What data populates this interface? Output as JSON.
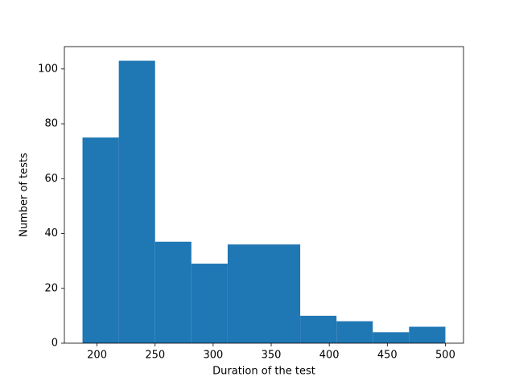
{
  "chart_data": {
    "type": "histogram",
    "xlabel": "Duration of the test",
    "ylabel": "Number of tests",
    "bins": [
      187.5,
      218.75,
      250,
      281.25,
      312.5,
      343.75,
      375,
      406.25,
      437.5,
      468.75,
      500
    ],
    "values": [
      75,
      103,
      37,
      29,
      36,
      36,
      10,
      8,
      4,
      6
    ],
    "color": "#1f77b4",
    "xlim": [
      171.875,
      515.625
    ],
    "xticks": [
      200,
      250,
      300,
      350,
      400,
      450,
      500
    ],
    "ylim": [
      0,
      108.15
    ],
    "yticks": [
      0,
      20,
      40,
      60,
      80,
      100
    ]
  }
}
